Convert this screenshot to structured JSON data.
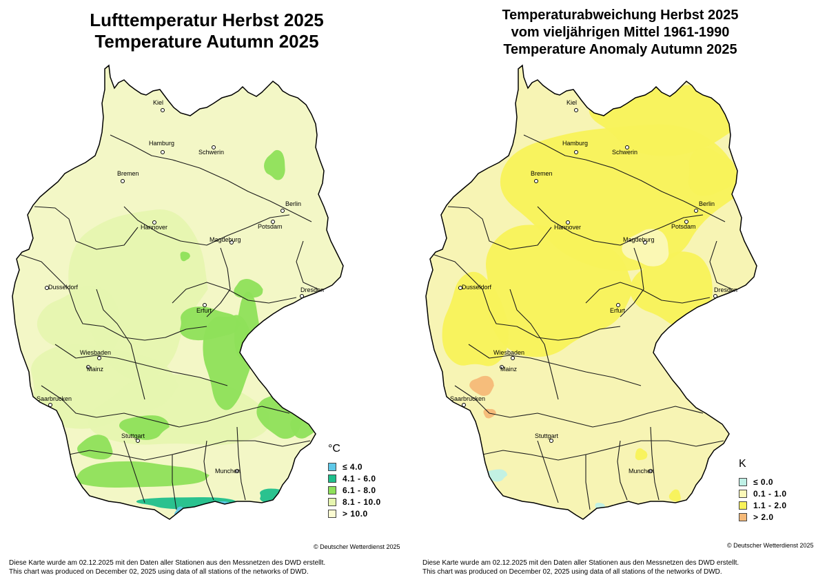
{
  "left": {
    "title_de": "Lufttemperatur Herbst 2025",
    "title_en": "Temperature Autumn 2025",
    "legend": {
      "unit": "°C",
      "items": [
        {
          "label": "≤  4.0",
          "color": "#5ec8e8"
        },
        {
          "label": "4.1 - 6.0",
          "color": "#1fbf8c"
        },
        {
          "label": "6.1 - 8.0",
          "color": "#8ee05a"
        },
        {
          "label": "8.1 - 10.0",
          "color": "#e6f5b0"
        },
        {
          "label": "> 10.0",
          "color": "#fbfbd2"
        }
      ]
    },
    "base_color": "#f3f7c6",
    "copyright": "© Deutscher Wetterdienst 2025",
    "footer_de": "Diese Karte wurde am 02.12.2025 mit den Daten aller Stationen aus den Messnetzen des DWD erstellt.",
    "footer_en": "This chart was produced on December 02, 2025 using data of all stations of the networks of DWD."
  },
  "right": {
    "title_line1": "Temperaturabweichung Herbst 2025",
    "title_line2": "vom vieljährigen Mittel 1961-1990",
    "title_line3": "Temperature Anomaly Autumn 2025",
    "legend": {
      "unit": "K",
      "items": [
        {
          "label": "≤  0.0",
          "color": "#bff0e6"
        },
        {
          "label": "0.1 - 1.0",
          "color": "#fbf8b8"
        },
        {
          "label": "1.1 - 2.0",
          "color": "#f8f25a"
        },
        {
          "label": "> 2.0",
          "color": "#f5b978"
        }
      ]
    },
    "base_color": "#f7f4b4",
    "copyright": "© Deutscher Wetterdienst 2025",
    "footer_de": "Diese Karte wurde am 02.12.2025 mit den Daten aller Stationen aus den Messnetzen des DWD erstellt.",
    "footer_en": "This chart was produced on December 02, 2025 using data of all stations of the networks of DWD."
  },
  "cities": [
    {
      "name": "Kiel"
    },
    {
      "name": "Hamburg"
    },
    {
      "name": "Schwerin"
    },
    {
      "name": "Bremen"
    },
    {
      "name": "Berlin"
    },
    {
      "name": "Potsdam"
    },
    {
      "name": "Hannover"
    },
    {
      "name": "Magdeburg"
    },
    {
      "name": "Dusseldorf"
    },
    {
      "name": "Dresden"
    },
    {
      "name": "Erfurt"
    },
    {
      "name": "Wiesbaden"
    },
    {
      "name": "Mainz"
    },
    {
      "name": "Saarbrucken"
    },
    {
      "name": "Stuttgart"
    },
    {
      "name": "Munchen"
    }
  ]
}
